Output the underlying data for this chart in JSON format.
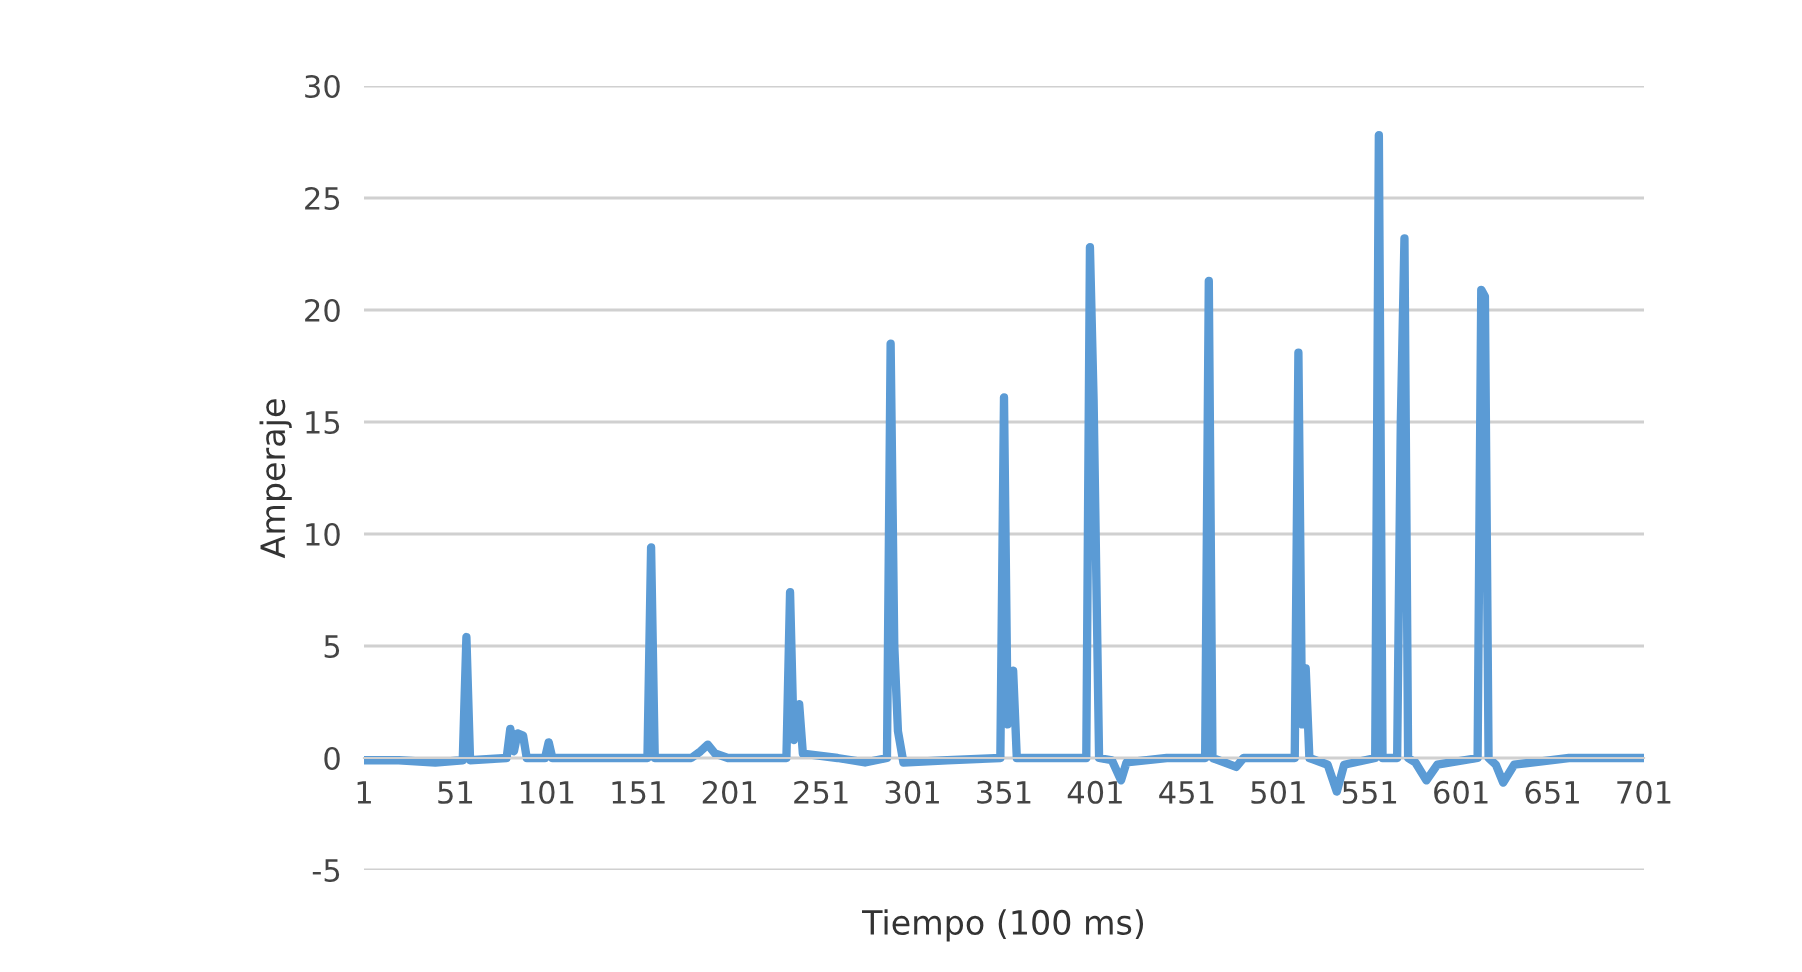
{
  "chart_data": {
    "type": "line",
    "xlabel": "Tiempo (100 ms)",
    "ylabel": "Amperaje",
    "xlim": [
      1,
      701
    ],
    "xticks": [
      1,
      51,
      101,
      151,
      201,
      251,
      301,
      351,
      401,
      451,
      501,
      551,
      601,
      651,
      701
    ],
    "ylim": [
      -5,
      30
    ],
    "yticks": [
      -5,
      0,
      5,
      10,
      15,
      20,
      25,
      30
    ],
    "grid": "y",
    "marker": "none",
    "line_style": "solid",
    "series": [
      {
        "color": "#5b9bd5",
        "x": [
          1,
          20,
          40,
          55,
          57,
          59,
          79,
          81,
          83,
          85,
          88,
          90,
          100,
          102,
          104,
          130,
          156,
          158,
          160,
          180,
          185,
          189,
          193,
          200,
          232,
          234,
          236,
          239,
          241,
          260,
          275,
          287,
          289,
          291,
          293,
          296,
          320,
          349,
          351,
          353,
          356,
          358,
          380,
          396,
          398,
          400,
          403,
          410,
          415,
          418,
          440,
          461,
          463,
          465,
          478,
          482,
          510,
          512,
          514,
          516,
          518,
          528,
          533,
          537,
          554,
          556,
          558,
          566,
          568,
          570,
          572,
          576,
          582,
          588,
          610,
          612,
          614,
          616,
          620,
          624,
          630,
          660,
          701
        ],
        "values": [
          -0.1,
          -0.1,
          -0.2,
          -0.1,
          5.4,
          -0.1,
          0,
          1.3,
          0.3,
          1.1,
          1.0,
          0,
          0,
          0.7,
          0,
          0,
          0,
          9.4,
          0,
          0,
          0.3,
          0.6,
          0.2,
          0,
          0,
          7.4,
          0.8,
          2.4,
          0.2,
          0,
          -0.2,
          0,
          18.5,
          5,
          1.2,
          -0.2,
          -0.1,
          0,
          16.1,
          1.5,
          3.9,
          0,
          0,
          0,
          22.8,
          16,
          0,
          -0.1,
          -1.0,
          -0.2,
          0,
          0,
          21.3,
          0,
          -0.4,
          0,
          0,
          18.1,
          1.5,
          4.0,
          0,
          -0.3,
          -1.5,
          -0.3,
          0,
          27.8,
          0,
          0,
          15,
          23.2,
          0,
          -0.2,
          -1.0,
          -0.3,
          0,
          20.9,
          20.6,
          0,
          -0.3,
          -1.1,
          -0.3,
          0,
          0
        ]
      }
    ]
  }
}
